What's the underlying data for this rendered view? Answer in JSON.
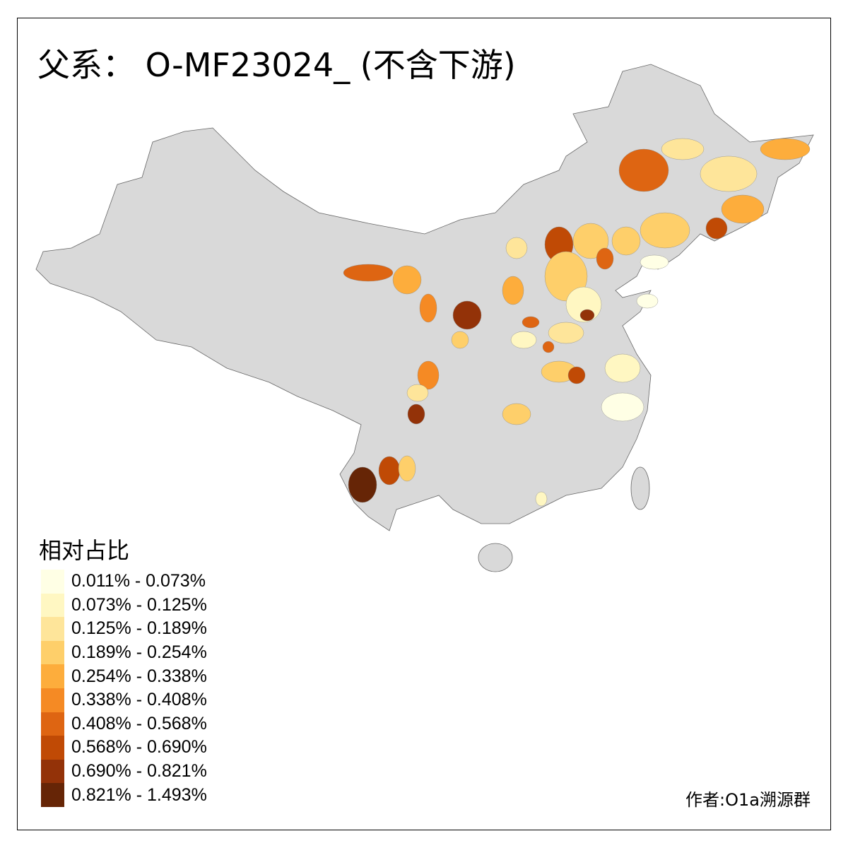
{
  "title": "父系： O-MF23024_ (不含下游)",
  "legend": {
    "title": "相对占比",
    "classes": [
      {
        "label": "0.011% - 0.073%",
        "color": "#FFFFE5"
      },
      {
        "label": "0.073% - 0.125%",
        "color": "#FFF7C2"
      },
      {
        "label": "0.125% - 0.189%",
        "color": "#FEE59A"
      },
      {
        "label": "0.189% - 0.254%",
        "color": "#FECF6A"
      },
      {
        "label": "0.254% - 0.338%",
        "color": "#FDAD3C"
      },
      {
        "label": "0.338% - 0.408%",
        "color": "#F58A24"
      },
      {
        "label": "0.408% - 0.568%",
        "color": "#DE6512"
      },
      {
        "label": "0.568% - 0.690%",
        "color": "#C04A05"
      },
      {
        "label": "0.690% - 0.821%",
        "color": "#933208"
      },
      {
        "label": "0.821% - 1.493%",
        "color": "#662506"
      }
    ]
  },
  "base_color": "#D9D9D9",
  "author": "作者:O1a溯源群"
}
